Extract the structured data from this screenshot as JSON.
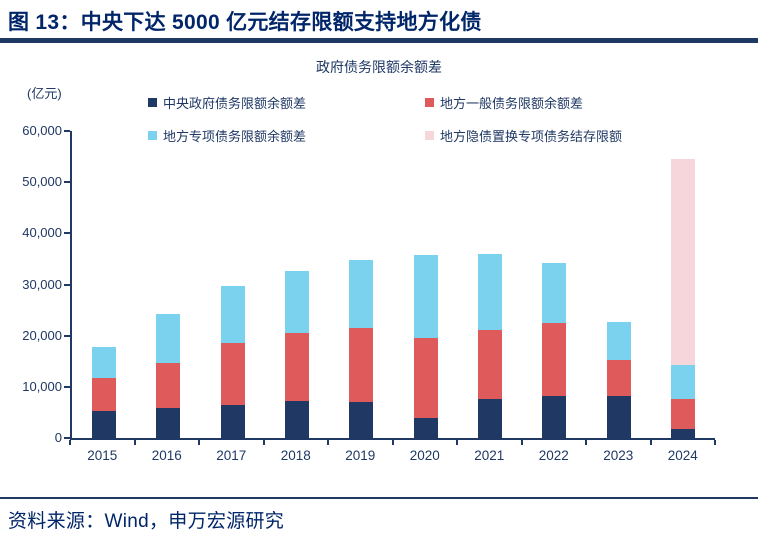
{
  "header": {
    "title": "图 13：中央下达 5000 亿元结存限额支持地方化债"
  },
  "chart": {
    "title": "政府债务限额余额差",
    "unit": "(亿元)"
  },
  "footer": {
    "source": "资料来源：Wind，申万宏源研究"
  },
  "colors": {
    "accent_text": "#002569",
    "axis_navy": "#1F3864",
    "series_navy": "#1F3864",
    "series_red": "#DF5B5B",
    "series_sky": "#7BD2EF",
    "series_pink": "#F6D6DB"
  },
  "chart_data": {
    "type": "bar",
    "stacked": true,
    "title": "政府债务限额余额差",
    "ylabel": "亿元",
    "xlabel": "",
    "grid": false,
    "legend_position": "top",
    "ylim": [
      0,
      60000
    ],
    "yticks": [
      {
        "value": 0,
        "label": "0"
      },
      {
        "value": 10000,
        "label": "10,000"
      },
      {
        "value": 20000,
        "label": "20,000"
      },
      {
        "value": 30000,
        "label": "30,000"
      },
      {
        "value": 40000,
        "label": "40,000"
      },
      {
        "value": 50000,
        "label": "50,000"
      },
      {
        "value": 60000,
        "label": "60,000"
      }
    ],
    "categories": [
      "2015",
      "2016",
      "2017",
      "2018",
      "2019",
      "2020",
      "2021",
      "2022",
      "2023",
      "2024"
    ],
    "series": [
      {
        "name": "中央政府债务限额余额差",
        "color": "#1F3864",
        "values": [
          5200,
          5800,
          6500,
          7200,
          7000,
          4000,
          7700,
          8200,
          8300,
          1800
        ]
      },
      {
        "name": "地方一般债务限额余额差",
        "color": "#DF5B5B",
        "values": [
          6600,
          8900,
          12000,
          13300,
          14500,
          15500,
          13400,
          14300,
          6900,
          5900
        ]
      },
      {
        "name": "地方专项债务限额余额差",
        "color": "#7BD2EF",
        "values": [
          6000,
          9500,
          11200,
          12200,
          13300,
          16200,
          14900,
          11700,
          7500,
          6600
        ]
      },
      {
        "name": "地方隐债置换专项债务结存限额",
        "color": "#F6D6DB",
        "values": [
          0,
          0,
          0,
          0,
          0,
          0,
          0,
          0,
          0,
          40200
        ]
      }
    ]
  }
}
